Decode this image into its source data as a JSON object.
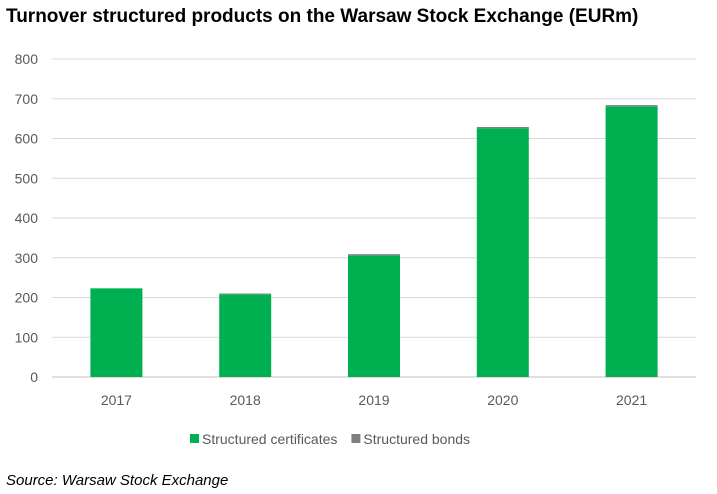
{
  "title": "Turnover structured products on the Warsaw Stock Exchange (EURm)",
  "source": "Source: Warsaw Stock Exchange",
  "chart_data": {
    "type": "bar",
    "stacked": true,
    "categories": [
      "2017",
      "2018",
      "2019",
      "2020",
      "2021"
    ],
    "series": [
      {
        "name": "Structured certificates",
        "color": "#00b050",
        "values": [
          223,
          208,
          306,
          626,
          681
        ]
      },
      {
        "name": "Structured bonds",
        "color": "#808080",
        "values": [
          0,
          2,
          3,
          3,
          3
        ]
      }
    ],
    "ylim": [
      0,
      800
    ],
    "yticks": [
      0,
      100,
      200,
      300,
      400,
      500,
      600,
      700,
      800
    ],
    "grid": true,
    "legend": "bottom"
  }
}
